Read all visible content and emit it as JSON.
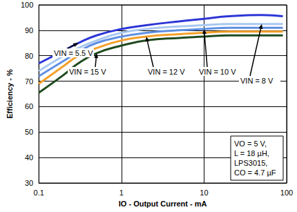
{
  "chart_data": {
    "type": "line",
    "x_label": "IO - Output Current - mA",
    "y_label": "Efficiency - %",
    "log": "x",
    "grid": true,
    "xlim": [
      0.1,
      100
    ],
    "xticks": [
      0.1,
      1,
      10,
      100
    ],
    "ylim": [
      30,
      100
    ],
    "yticks": [
      30,
      40,
      50,
      60,
      70,
      80,
      90,
      100
    ],
    "x": [
      0.1,
      0.2,
      0.3,
      0.5,
      1,
      2,
      5,
      10,
      20,
      50,
      90
    ],
    "series": [
      {
        "name": "VIN = 5.5 V",
        "color": "#2c35d6",
        "values": [
          77,
          82,
          85,
          88,
          90.5,
          92,
          93.5,
          94.5,
          95.5,
          96,
          95.5
        ]
      },
      {
        "name": "VIN = 8 V",
        "color": "#a9c8f0",
        "values": [
          74,
          80,
          83,
          86,
          89,
          90.5,
          91.5,
          92,
          92.5,
          92.5,
          92.5
        ]
      },
      {
        "name": "VIN = 10 V",
        "color": "#5f8fe2",
        "values": [
          72,
          78,
          81.5,
          85,
          87.5,
          89,
          90,
          90.5,
          91,
          91,
          91
        ]
      },
      {
        "name": "VIN = 12 V",
        "color": "#f5a02a",
        "values": [
          69,
          76,
          80,
          83,
          86,
          87.5,
          88.5,
          89,
          89.5,
          89.5,
          89.5
        ]
      },
      {
        "name": "VIN = 15 V",
        "color": "#1f4a1f",
        "values": [
          65.5,
          72.5,
          77,
          81,
          84,
          86,
          87,
          87.5,
          88,
          88,
          88
        ]
      }
    ],
    "notes": [
      "VO = 5 V,",
      "L = 18 µH,",
      "LPS3015,",
      "CO = 4.7 µF"
    ]
  }
}
